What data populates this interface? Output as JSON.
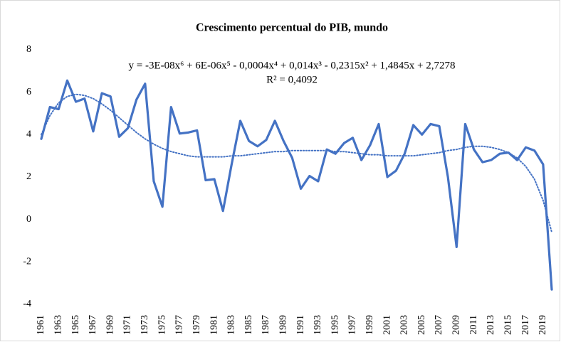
{
  "chart_data": {
    "type": "line",
    "title": "Crescimento percentual do PIB, mundo",
    "annotations": [
      "y = -3E-08x⁶ + 6E-06x⁵ - 0,0004x⁴ + 0,014x³ - 0,2315x² + 1,4845x + 2,7278",
      "R² = 0,4092"
    ],
    "categories": [
      "1961",
      null,
      "1963",
      null,
      "1965",
      null,
      "1967",
      null,
      "1969",
      null,
      "1971",
      null,
      "1973",
      null,
      "1975",
      null,
      "1977",
      null,
      "1979",
      null,
      "1981",
      null,
      "1983",
      null,
      "1985",
      null,
      "1987",
      null,
      "1989",
      null,
      "1991",
      null,
      "1993",
      null,
      "1995",
      null,
      "1997",
      null,
      "1999",
      null,
      "2001",
      null,
      "2003",
      null,
      "2005",
      null,
      "2007",
      null,
      "2009",
      null,
      "2011",
      null,
      "2013",
      null,
      "2015",
      null,
      "2017",
      null,
      "2019",
      null
    ],
    "series": [
      {
        "color": "#4472c4",
        "style": "solid",
        "values": [
          3.8,
          5.3,
          5.2,
          6.55,
          5.55,
          5.7,
          4.15,
          5.95,
          5.8,
          3.9,
          4.3,
          5.65,
          6.4,
          1.8,
          0.6,
          5.3,
          4.05,
          4.1,
          4.2,
          1.85,
          1.9,
          0.4,
          2.6,
          4.65,
          3.7,
          3.45,
          3.75,
          4.65,
          3.7,
          2.9,
          1.45,
          2.05,
          1.8,
          3.3,
          3.1,
          3.6,
          3.85,
          2.8,
          3.5,
          4.5,
          2.0,
          2.3,
          3.1,
          4.45,
          4.0,
          4.5,
          4.4,
          2.0,
          -1.3,
          4.5,
          3.3,
          2.7,
          2.8,
          3.1,
          3.15,
          2.8,
          3.4,
          3.25,
          2.6,
          -3.3
        ]
      },
      {
        "color": "#4472c4",
        "style": "dotted",
        "values": [
          4.0,
          4.9,
          5.5,
          5.8,
          5.9,
          5.85,
          5.7,
          5.45,
          5.15,
          4.8,
          4.45,
          4.1,
          3.8,
          3.55,
          3.35,
          3.2,
          3.1,
          3.0,
          2.95,
          2.95,
          2.95,
          2.95,
          3.0,
          3.0,
          3.05,
          3.1,
          3.15,
          3.2,
          3.2,
          3.25,
          3.25,
          3.25,
          3.25,
          3.25,
          3.2,
          3.2,
          3.15,
          3.1,
          3.05,
          3.05,
          3.0,
          3.0,
          3.0,
          3.0,
          3.05,
          3.1,
          3.15,
          3.25,
          3.3,
          3.4,
          3.45,
          3.45,
          3.4,
          3.3,
          3.15,
          2.9,
          2.5,
          1.9,
          0.9,
          -0.6
        ]
      }
    ],
    "ylim": [
      -4,
      8
    ],
    "yticks": [
      -4,
      -2,
      0,
      2,
      4,
      6,
      8
    ],
    "grid": false
  }
}
